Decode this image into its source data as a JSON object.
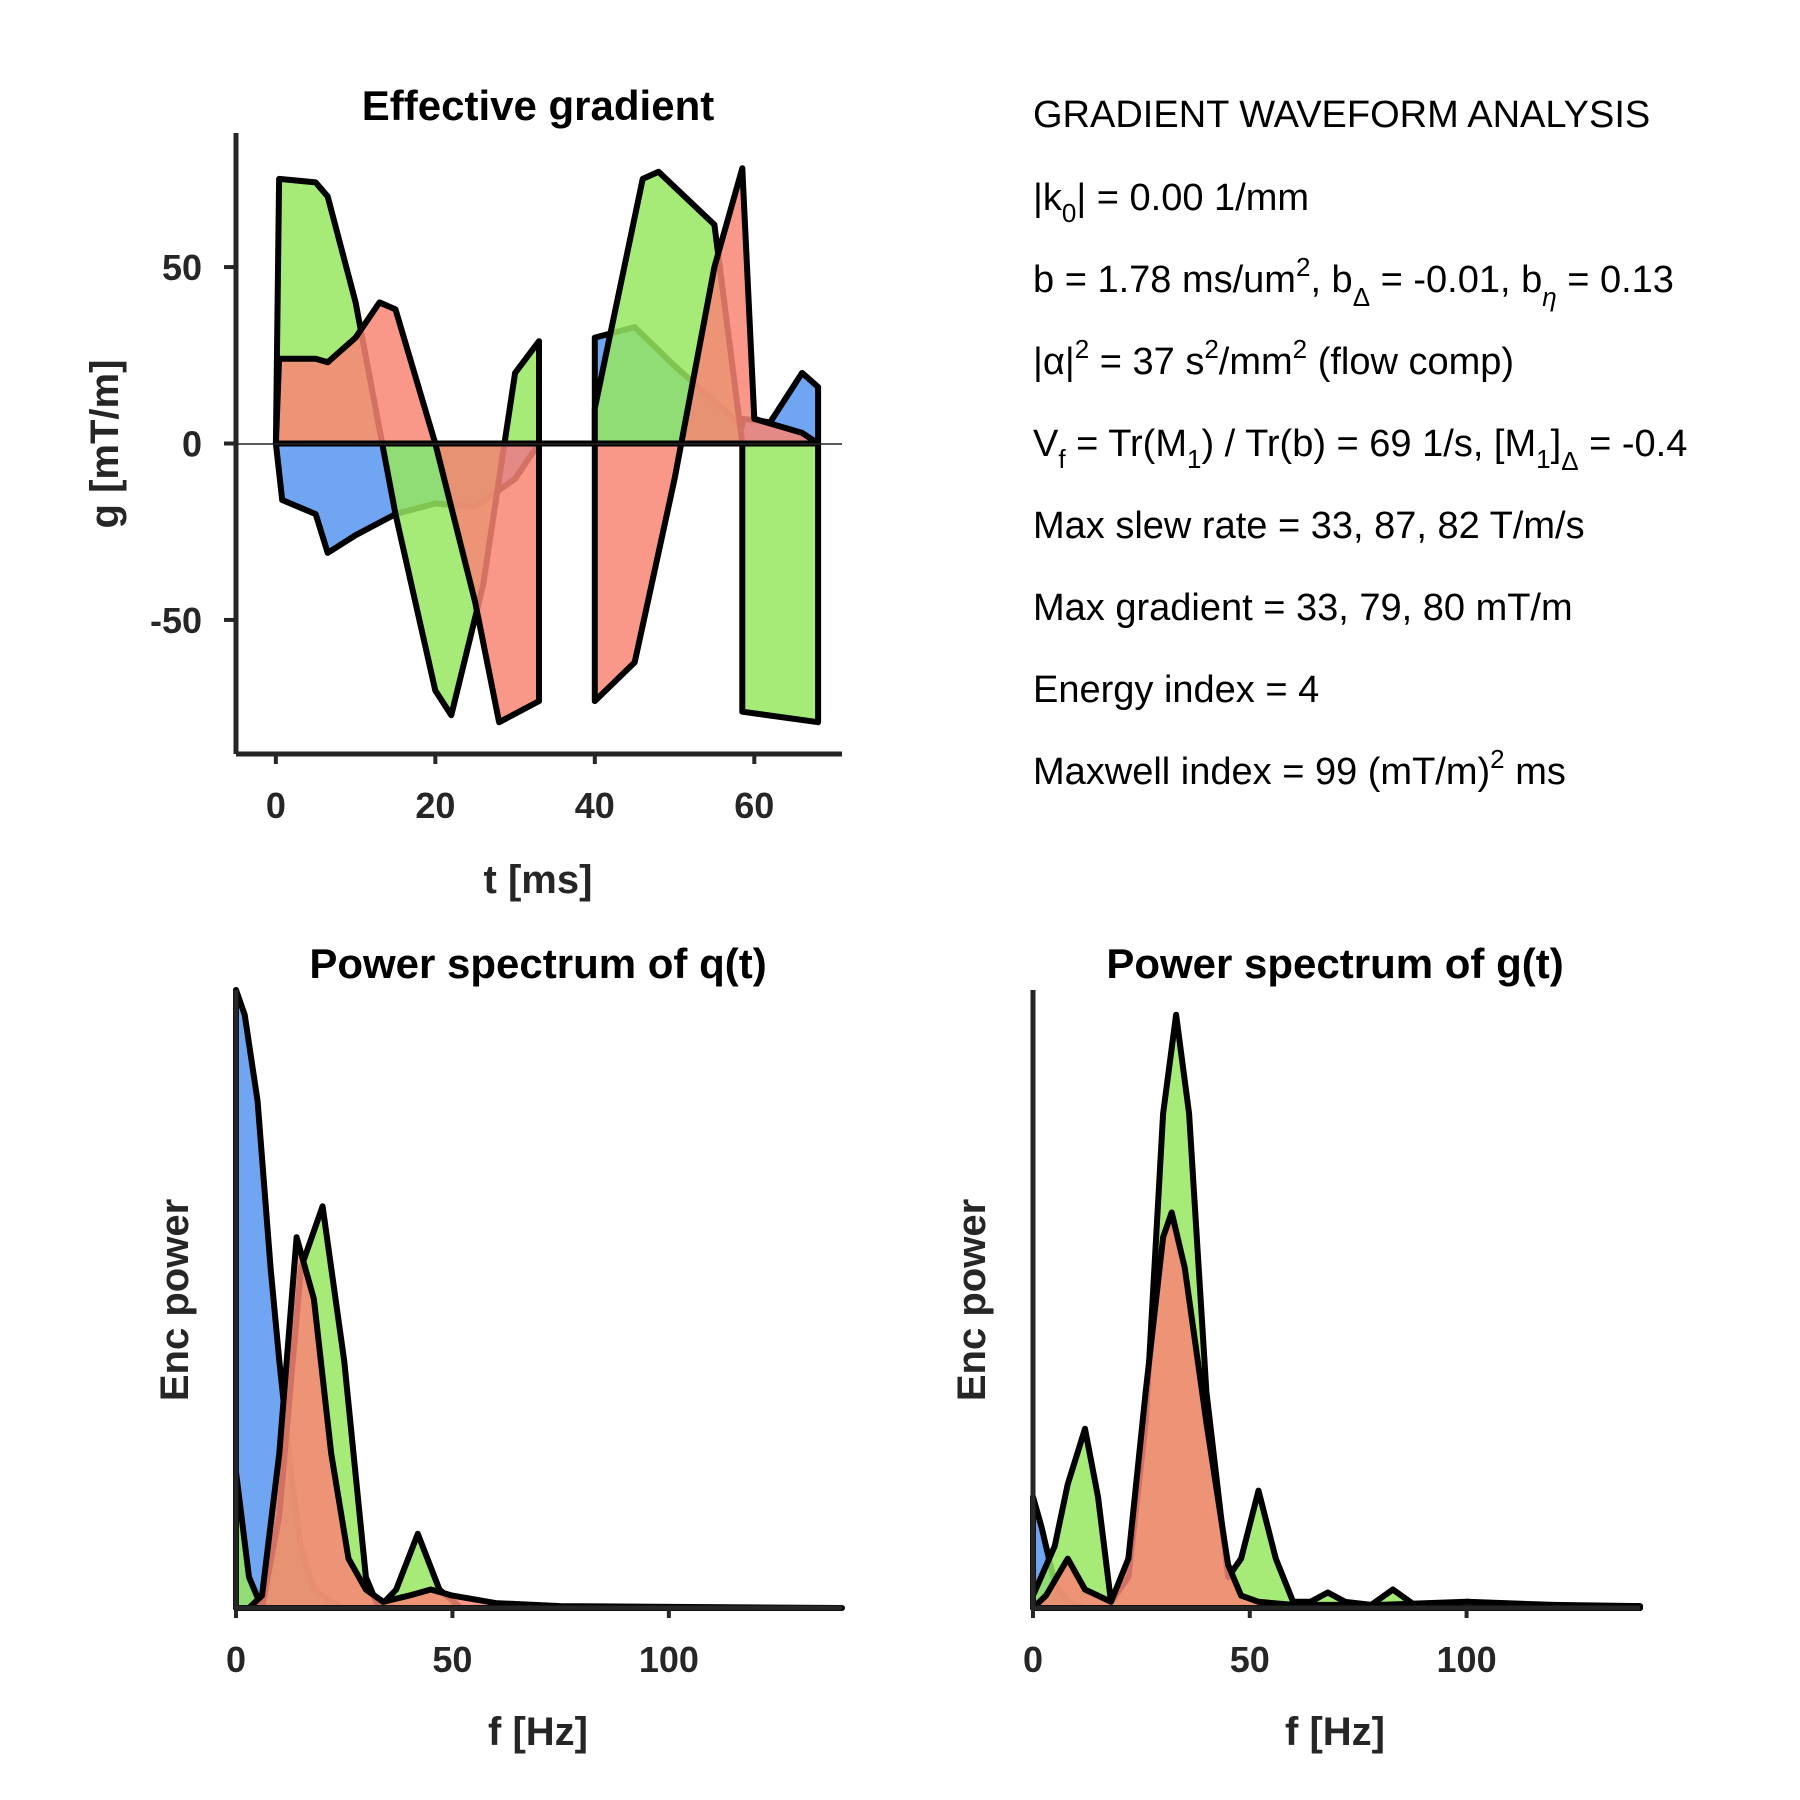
{
  "colors": {
    "x": "#6fa5f1",
    "y": "#96e65f",
    "z": "#f88574",
    "overlap": "#d98844",
    "axis": "#262626",
    "outline": "#000000"
  },
  "chart_data": [
    {
      "type": "area",
      "title": "Effective gradient",
      "xlabel": "t [ms]",
      "ylabel": "g [mT/m]",
      "xlim": [
        -5,
        71
      ],
      "ylim": [
        -88,
        88
      ],
      "xticks": [
        "0",
        "20",
        "40",
        "60"
      ],
      "xtick_values": [
        0,
        20,
        40,
        60
      ],
      "yticks": [
        "50",
        "0",
        "-50"
      ],
      "ytick_values": [
        50,
        0,
        -50
      ],
      "series": [
        {
          "x": [
            0,
            0.8,
            5,
            6.5,
            10,
            15,
            20,
            25,
            30,
            33,
            33,
            40,
            40,
            45,
            50,
            55,
            58.5,
            58.5,
            62,
            66,
            68,
            68
          ],
          "values": [
            0,
            -16,
            -20,
            -31,
            -26,
            -20,
            -17,
            -18,
            -10,
            0,
            0,
            0,
            30,
            33,
            22,
            12,
            5,
            7,
            6,
            20,
            16,
            0
          ]
        },
        {
          "x": [
            0,
            0.4,
            5,
            6.5,
            10,
            15,
            20,
            22,
            26,
            30,
            33,
            33,
            40,
            40,
            46,
            48,
            55,
            58.5,
            58.5,
            68,
            68
          ],
          "values": [
            0,
            75,
            74,
            70,
            40,
            -20,
            -70,
            -77,
            -40,
            20,
            29,
            0,
            0,
            10,
            75,
            77,
            62,
            0,
            -76,
            -79,
            0
          ]
        },
        {
          "x": [
            0,
            0.4,
            5,
            6.5,
            10,
            13,
            15,
            20,
            25,
            28,
            33,
            33,
            40,
            40,
            45,
            50,
            55,
            58.5,
            60,
            66,
            68
          ],
          "values": [
            0,
            24,
            24,
            23,
            30,
            40,
            38,
            0,
            -45,
            -79,
            -73,
            0,
            0,
            -73,
            -62,
            -10,
            50,
            78,
            7,
            3,
            0
          ]
        }
      ]
    },
    {
      "type": "area",
      "title": "Power spectrum of q(t)",
      "xlabel": "f [Hz]",
      "ylabel": "Enc power",
      "xlim": [
        0,
        140
      ],
      "ylim": [
        0,
        1
      ],
      "xticks": [
        "0",
        "50",
        "100"
      ],
      "xtick_values": [
        0,
        50,
        100
      ],
      "series": [
        {
          "x": [
            0,
            2,
            5,
            8,
            10,
            13,
            15,
            18,
            22,
            25
          ],
          "values": [
            1.0,
            0.96,
            0.82,
            0.55,
            0.4,
            0.2,
            0.1,
            0.03,
            0.01,
            0
          ]
        },
        {
          "x": [
            0,
            3,
            6,
            10,
            15,
            20,
            25,
            30,
            33,
            37,
            42,
            47,
            52
          ],
          "values": [
            0.22,
            0.05,
            0.0,
            0.15,
            0.55,
            0.65,
            0.4,
            0.05,
            0.0,
            0.03,
            0.12,
            0.03,
            0.0
          ]
        },
        {
          "x": [
            0,
            3,
            6,
            10,
            14,
            18,
            22,
            26,
            30,
            34,
            40,
            45,
            50,
            60,
            75,
            140
          ],
          "values": [
            0.0,
            0.0,
            0.02,
            0.25,
            0.6,
            0.5,
            0.25,
            0.08,
            0.03,
            0.01,
            0.02,
            0.03,
            0.02,
            0.008,
            0.003,
            0.0
          ]
        }
      ]
    },
    {
      "type": "area",
      "title": "Power spectrum of g(t)",
      "xlabel": "f [Hz]",
      "ylabel": "Enc power",
      "xlim": [
        0,
        140
      ],
      "ylim": [
        0,
        1
      ],
      "xticks": [
        "0",
        "50",
        "100"
      ],
      "xtick_values": [
        0,
        50,
        100
      ],
      "series": [
        {
          "x": [
            0,
            2,
            5,
            8,
            12
          ],
          "values": [
            0.18,
            0.13,
            0.04,
            0.01,
            0
          ]
        },
        {
          "x": [
            0,
            5,
            8,
            12,
            15,
            18,
            22,
            26,
            30,
            33,
            36,
            40,
            45,
            48,
            52,
            56,
            60,
            64,
            68,
            72,
            78,
            83,
            88,
            95,
            100,
            110,
            120,
            140
          ],
          "values": [
            0.02,
            0.1,
            0.2,
            0.29,
            0.18,
            0.01,
            0.05,
            0.3,
            0.8,
            0.96,
            0.8,
            0.35,
            0.05,
            0.08,
            0.19,
            0.08,
            0.01,
            0.01,
            0.025,
            0.01,
            0.005,
            0.03,
            0.005,
            0.003,
            0.01,
            0.005,
            0.003,
            0.003
          ]
        },
        {
          "x": [
            0,
            3,
            8,
            12,
            18,
            22,
            26,
            30,
            32,
            35,
            40,
            45,
            48,
            52,
            60,
            70,
            80,
            100,
            120,
            140
          ],
          "values": [
            0.0,
            0.02,
            0.08,
            0.03,
            0.01,
            0.08,
            0.35,
            0.6,
            0.64,
            0.55,
            0.3,
            0.07,
            0.02,
            0.01,
            0.005,
            0.005,
            0.005,
            0.01,
            0.005,
            0.003
          ]
        }
      ]
    }
  ],
  "analysis": {
    "heading": "GRADIENT WAVEFORM ANALYSIS",
    "k0": {
      "pre": "|k",
      "sub": "0",
      "post": "| = 0.00 1/mm"
    },
    "b": {
      "p1": "b = 1.78 ms/um",
      "sup1": "2",
      "p2": ", b",
      "sub1": "Δ",
      "p3": " = -0.01, b",
      "sub2": "η",
      "p4": " = 0.13"
    },
    "alpha": {
      "p1": "|α|",
      "sup1": "2",
      "p2": " = 37 s",
      "sup2": "2",
      "p3": "/mm",
      "sup3": "2",
      "p4": " (flow comp)"
    },
    "vf": {
      "p1": "V",
      "sub1": "f",
      "p2": " = Tr(M",
      "sub2": "1",
      "p3": ") / Tr(b) =  69 1/s, [M",
      "sub3": "1",
      "p4": "]",
      "sub4": "Δ",
      "p5": " = -0.4"
    },
    "slew": "Max slew rate = 33, 87, 82 T/m/s",
    "gmax": "Max gradient = 33, 79, 80 mT/m",
    "energy": "Energy index =  4",
    "maxwell": {
      "p1": "Maxwell index = 99 (mT/m)",
      "sup1": "2",
      "p2": " ms"
    }
  }
}
